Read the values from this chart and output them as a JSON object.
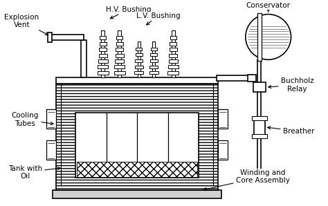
{
  "bg_color": "#ffffff",
  "line_color": "#000000",
  "labels": {
    "explosion_vent": "Explosion\nVent",
    "hv_bushing": "H.V. Bushing",
    "lv_bushing": "L.V. Bushing",
    "conservator": "Conservator",
    "cooling_tubes": "Cooling\nTubes",
    "tank_with_oil": "Tank with\nOil",
    "buchholz_relay": "Buchholz\nRelay",
    "breather": "Breather",
    "winding_core": "Winding and\nCore Assembly"
  },
  "font_size": 7.5,
  "lw": 1.2
}
